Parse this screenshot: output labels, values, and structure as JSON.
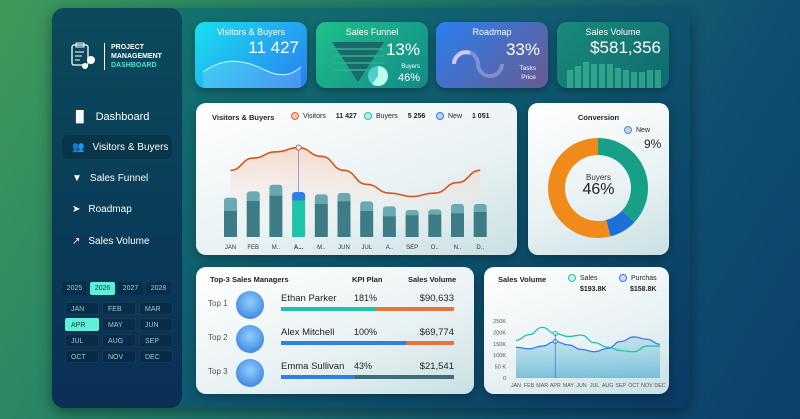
{
  "sidebar": {
    "logo": {
      "line1": "PROJECT",
      "line2": "MANAGEMENT",
      "line3": "DASHBOARD"
    },
    "items": [
      {
        "label": "Dashboard",
        "icon": "bar-chart-icon"
      },
      {
        "label": "Visitors & Buyers",
        "icon": "users-icon",
        "active": true
      },
      {
        "label": "Sales Funnel",
        "icon": "funnel-icon"
      },
      {
        "label": "Roadmap",
        "icon": "road-icon"
      },
      {
        "label": "Sales Volume",
        "icon": "trend-up-icon"
      }
    ],
    "years": [
      "2025",
      "2026",
      "2027",
      "2028"
    ],
    "selected_year": "2026",
    "months": [
      "JAN",
      "FEB",
      "MAR",
      "APR",
      "MAY",
      "JUN",
      "JUL",
      "AUG",
      "SEP",
      "OCT",
      "NOV",
      "DEC"
    ],
    "selected_month": "APR"
  },
  "kpis": {
    "visitors": {
      "title": "Visitors & Buyers",
      "value": "11 427"
    },
    "funnel": {
      "title": "Sales Funnel",
      "value": "13%",
      "sub_label": "Buyers",
      "sub_value": "46%"
    },
    "roadmap": {
      "title": "Roadmap",
      "value": "33%",
      "sub1": "Tasks",
      "sub2": "Price",
      "progress": 0.33
    },
    "sales": {
      "title": "Sales Volume",
      "value": "$581,356"
    }
  },
  "colors": {
    "visitors": "#e0652a",
    "buyers": "#1fc4a8",
    "new": "#2f7fe6",
    "bar": "#3d7c86",
    "bar_top": "#6aa9b2"
  },
  "chart_data": [
    {
      "type": "bar",
      "title": "Visitors & Buyers",
      "legend": [
        {
          "name": "Visitors",
          "value": "11 427"
        },
        {
          "name": "Buyers",
          "value": "5 256"
        },
        {
          "name": "New",
          "value": "1 051"
        }
      ],
      "categories": [
        "JAN",
        "FEB",
        "M..",
        "A...",
        "M..",
        "JUN",
        "JUL",
        "A..",
        "SEP",
        "O..",
        "N..",
        "D.."
      ],
      "selected_index": 3,
      "series": [
        {
          "name": "Buyers",
          "values": [
            78,
            108,
            124,
            110,
            99,
            107,
            78,
            62,
            65,
            67,
            71,
            75
          ]
        },
        {
          "name": "New",
          "values": [
            40,
            29,
            33,
            25,
            29,
            25,
            29,
            30,
            16,
            16,
            28,
            24
          ]
        },
        {
          "name": "Visitors",
          "values": [
            205,
            240,
            258,
            270,
            245,
            205,
            165,
            140,
            130,
            140,
            170,
            205
          ]
        }
      ]
    },
    {
      "type": "pie",
      "title": "Conversion",
      "center_label": "Buyers",
      "center_value": "46%",
      "new_label": "New",
      "new_value": "9%",
      "slices": [
        {
          "name": "Buyers",
          "value": 37,
          "color": "#17a088"
        },
        {
          "name": "New",
          "value": 9,
          "color": "#1f6fd8"
        },
        {
          "name": "Other",
          "value": 54,
          "color": "#f08a1a"
        }
      ]
    },
    {
      "type": "line",
      "title": "Sales Volume",
      "legend": [
        {
          "name": "Sales",
          "value": "$193.8K"
        },
        {
          "name": "Purchas",
          "value": "$158.8K"
        }
      ],
      "categories": [
        "JAN",
        "FEB",
        "MAR",
        "APR",
        "MAY",
        "JUN",
        "JUL",
        "AUG",
        "SEP",
        "OCT",
        "NOV",
        "DEC"
      ],
      "yticks": [
        "0",
        "50 K",
        "100K",
        "150K",
        "200K",
        "250K"
      ],
      "ylim": [
        0,
        250
      ],
      "selected_index": 3,
      "series": [
        {
          "name": "Sales",
          "values": [
            165,
            190,
            222,
            195,
            182,
            188,
            155,
            135,
            120,
            115,
            140,
            140
          ]
        },
        {
          "name": "Purchas",
          "values": [
            135,
            128,
            140,
            160,
            145,
            125,
            115,
            130,
            160,
            180,
            170,
            148
          ]
        }
      ]
    }
  ],
  "managers": {
    "title": "Top-3 Sales Managers",
    "kpi_header": "KPI Plan",
    "sales_header": "Sales Volume",
    "rows": [
      {
        "rank": "Top 1",
        "name": "Ethan Parker",
        "kpi": "181%",
        "sales": "$90,633",
        "fill": 0.55,
        "c1": "#1fc4a8",
        "c2": "#e8743a"
      },
      {
        "rank": "Top 2",
        "name": "Alex Mitchell",
        "kpi": "100%",
        "sales": "$69,774",
        "fill": 0.72,
        "c1": "#2f7fe6",
        "c2": "#e8743a"
      },
      {
        "rank": "Top 3",
        "name": "Emma Sullivan",
        "kpi": "43%",
        "sales": "$21,541",
        "fill": 0.43,
        "c1": "#2f7fe6",
        "c2": "#3d6f7a"
      }
    ]
  }
}
